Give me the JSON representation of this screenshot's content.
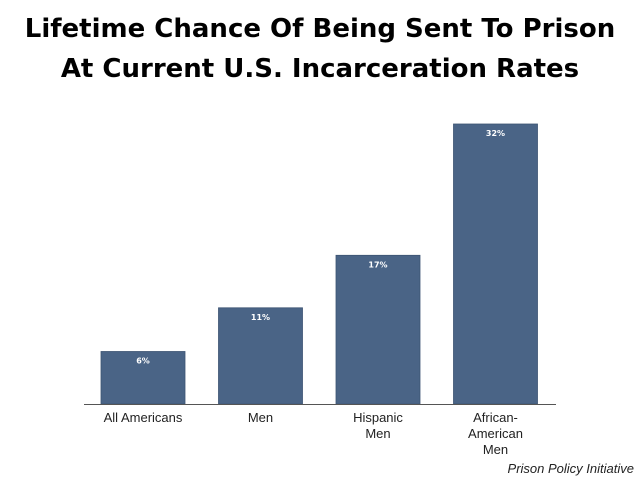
{
  "chart_data": {
    "type": "bar",
    "title": "Lifetime Chance Of Being Sent To Prison",
    "subtitle": "At Current U.S. Incarceration Rates",
    "categories": [
      [
        "All Americans"
      ],
      [
        "Men"
      ],
      [
        "Hispanic",
        "Men"
      ],
      [
        "African-",
        "American",
        "Men"
      ]
    ],
    "values": [
      6,
      11,
      17,
      32
    ],
    "data_labels": [
      "6%",
      "11%",
      "17%",
      "32%"
    ],
    "ylim": [
      0,
      32
    ],
    "grid": false,
    "legend": "none",
    "bar_color": "#4a6486",
    "axis_color": "#555555"
  },
  "source": "Prison Policy Initiative"
}
